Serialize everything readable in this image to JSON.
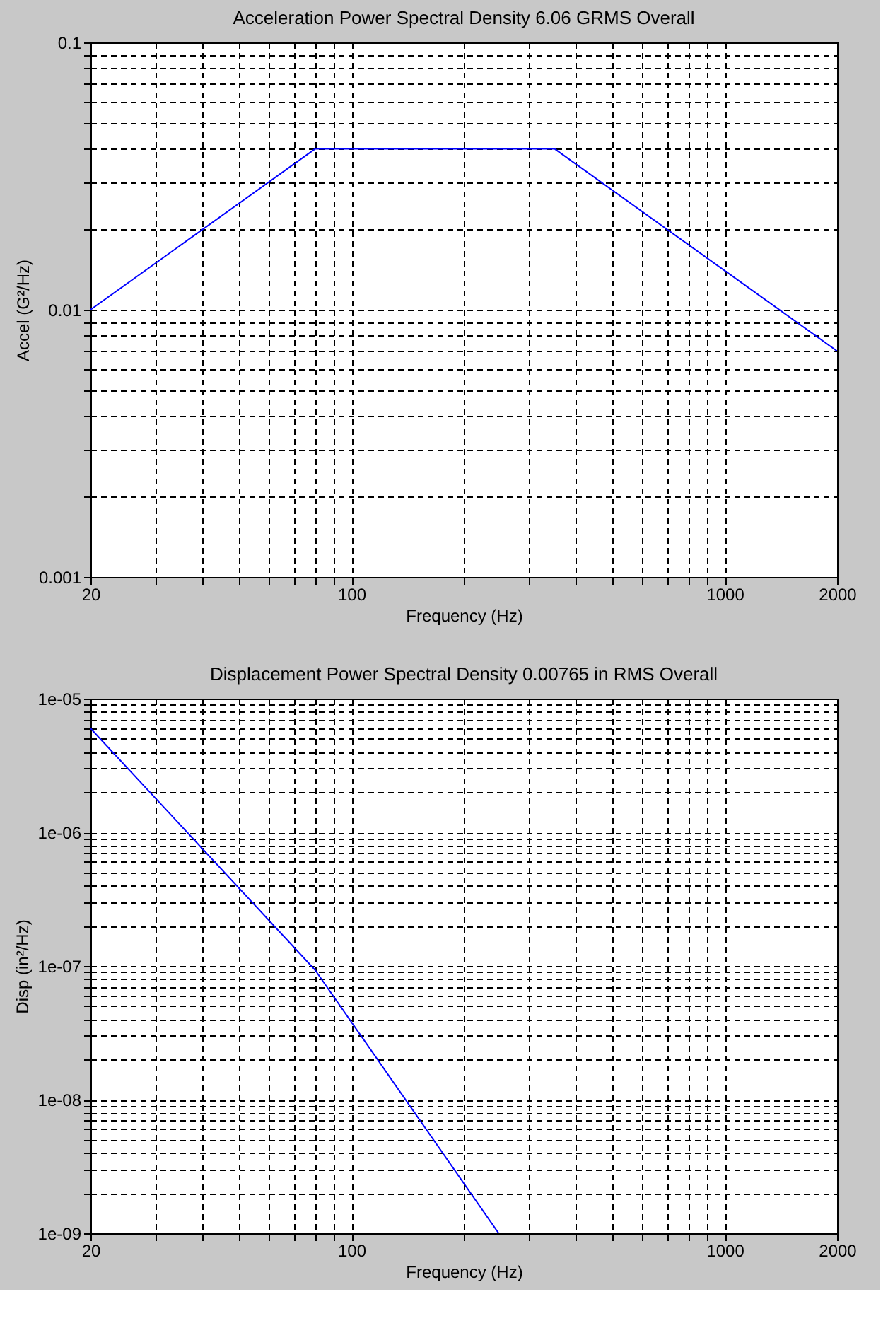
{
  "chart_data": [
    {
      "type": "line",
      "title": "Acceleration Power Spectral Density    6.06 GRMS Overall",
      "xlabel": "Frequency (Hz)",
      "ylabel": "Accel (G²/Hz)",
      "log": "xy",
      "grid": true,
      "xlim": [
        20,
        2000
      ],
      "ylim": [
        0.001,
        0.1
      ],
      "xticks": [
        20,
        {
          "value": 30,
          "label": null
        },
        {
          "value": 40,
          "label": null
        },
        {
          "value": 50,
          "label": null
        },
        {
          "value": 60,
          "label": null
        },
        {
          "value": 70,
          "label": null
        },
        {
          "value": 80,
          "label": null
        },
        {
          "value": 90,
          "label": null
        },
        100,
        {
          "value": 200,
          "label": null
        },
        {
          "value": 300,
          "label": null
        },
        {
          "value": 400,
          "label": null
        },
        {
          "value": 500,
          "label": null
        },
        {
          "value": 600,
          "label": null
        },
        {
          "value": 700,
          "label": null
        },
        {
          "value": 800,
          "label": null
        },
        {
          "value": 900,
          "label": null
        },
        1000,
        2000
      ],
      "yticks": [
        0.001,
        {
          "value": 0.002,
          "label": null
        },
        {
          "value": 0.003,
          "label": null
        },
        {
          "value": 0.004,
          "label": null
        },
        {
          "value": 0.005,
          "label": null
        },
        {
          "value": 0.006,
          "label": null
        },
        {
          "value": 0.007,
          "label": null
        },
        {
          "value": 0.008,
          "label": null
        },
        {
          "value": 0.009,
          "label": null
        },
        0.01,
        {
          "value": 0.02,
          "label": null
        },
        {
          "value": 0.03,
          "label": null
        },
        {
          "value": 0.04,
          "label": null
        },
        {
          "value": 0.05,
          "label": null
        },
        {
          "value": 0.06,
          "label": null
        },
        {
          "value": 0.07,
          "label": null
        },
        {
          "value": 0.08,
          "label": null
        },
        {
          "value": 0.09,
          "label": null
        },
        0.1
      ],
      "series": [
        {
          "color": "#0000ff",
          "x": [
            20,
            80,
            350,
            2000
          ],
          "values": [
            0.01,
            0.04,
            0.04,
            0.007
          ]
        }
      ]
    },
    {
      "type": "line",
      "title": "Displacement Power Spectral Density 0.00765 in RMS Overall",
      "xlabel": "Frequency (Hz)",
      "ylabel": "Disp (in²/Hz)",
      "log": "xy",
      "grid": true,
      "xlim": [
        20,
        2000
      ],
      "ylim": [
        1e-09,
        1e-05
      ],
      "xticks": [
        20,
        {
          "value": 30,
          "label": null
        },
        {
          "value": 40,
          "label": null
        },
        {
          "value": 50,
          "label": null
        },
        {
          "value": 60,
          "label": null
        },
        {
          "value": 70,
          "label": null
        },
        {
          "value": 80,
          "label": null
        },
        {
          "value": 90,
          "label": null
        },
        100,
        {
          "value": 200,
          "label": null
        },
        {
          "value": 300,
          "label": null
        },
        {
          "value": 400,
          "label": null
        },
        {
          "value": 500,
          "label": null
        },
        {
          "value": 600,
          "label": null
        },
        {
          "value": 700,
          "label": null
        },
        {
          "value": 800,
          "label": null
        },
        {
          "value": 900,
          "label": null
        },
        1000,
        2000
      ],
      "yticks": [
        {
          "value": 1e-09,
          "label": "1e-09"
        },
        {
          "value": 2e-09,
          "label": null
        },
        {
          "value": 3e-09,
          "label": null
        },
        {
          "value": 4e-09,
          "label": null
        },
        {
          "value": 5e-09,
          "label": null
        },
        {
          "value": 6e-09,
          "label": null
        },
        {
          "value": 7e-09,
          "label": null
        },
        {
          "value": 8e-09,
          "label": null
        },
        {
          "value": 9e-09,
          "label": null
        },
        {
          "value": 1e-08,
          "label": "1e-08"
        },
        {
          "value": 2e-08,
          "label": null
        },
        {
          "value": 3e-08,
          "label": null
        },
        {
          "value": 4e-08,
          "label": null
        },
        {
          "value": 5e-08,
          "label": null
        },
        {
          "value": 6e-08,
          "label": null
        },
        {
          "value": 7e-08,
          "label": null
        },
        {
          "value": 8e-08,
          "label": null
        },
        {
          "value": 9e-08,
          "label": null
        },
        {
          "value": 1e-07,
          "label": "1e-07"
        },
        {
          "value": 2e-07,
          "label": null
        },
        {
          "value": 3e-07,
          "label": null
        },
        {
          "value": 4e-07,
          "label": null
        },
        {
          "value": 5e-07,
          "label": null
        },
        {
          "value": 6e-07,
          "label": null
        },
        {
          "value": 7e-07,
          "label": null
        },
        {
          "value": 8e-07,
          "label": null
        },
        {
          "value": 9e-07,
          "label": null
        },
        {
          "value": 1e-06,
          "label": "1e-06"
        },
        {
          "value": 2e-06,
          "label": null
        },
        {
          "value": 3e-06,
          "label": null
        },
        {
          "value": 4e-06,
          "label": null
        },
        {
          "value": 5e-06,
          "label": null
        },
        {
          "value": 6e-06,
          "label": null
        },
        {
          "value": 7e-06,
          "label": null
        },
        {
          "value": 8e-06,
          "label": null
        },
        {
          "value": 9e-06,
          "label": null
        },
        {
          "value": 1e-05,
          "label": "1e-05"
        }
      ],
      "series": [
        {
          "color": "#0000ff",
          "x": [
            20,
            80,
            248
          ],
          "values": [
            6e-06,
            9.3e-08,
            1e-09
          ]
        }
      ]
    }
  ]
}
